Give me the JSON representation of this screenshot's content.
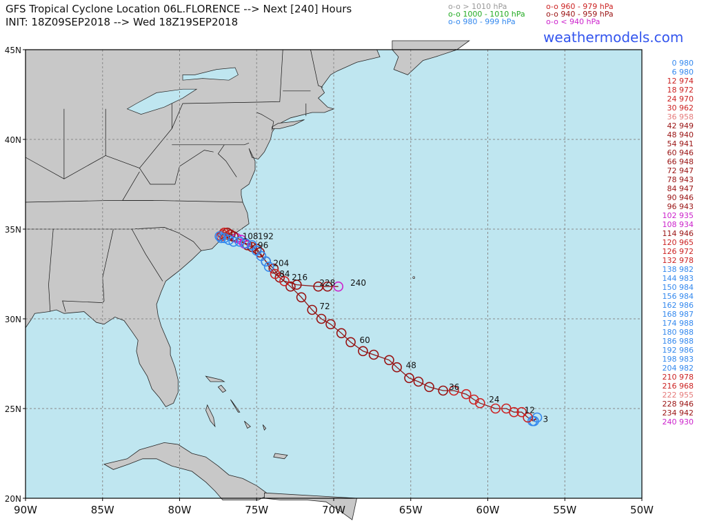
{
  "header": {
    "title_line1": "GFS Tropical Cyclone Location 06L.FLORENCE --> Next [240] Hours",
    "title_line2": "INIT: 18Z09SEP2018 --> Wed 18Z19SEP2018",
    "brand": "weathermodels.com"
  },
  "legend": [
    {
      "label": "o-o > 1010 hPa",
      "color": "#999999"
    },
    {
      "label": "o-o 1000 - 1010 hPa",
      "color": "#22aa22"
    },
    {
      "label": "o-o 980 - 999 hPa",
      "color": "#3388ee"
    },
    {
      "label": "o-o 960 - 979 hPa",
      "color": "#cc2222"
    },
    {
      "label": "o-o 940 - 959 hPa",
      "color": "#991111"
    },
    {
      "label": "o-o < 940 hPa",
      "color": "#cc22cc"
    }
  ],
  "colors": {
    "ocean": "#bfe6f0",
    "land": "#c8c8c8",
    "track": "#8b1a1a",
    "grid": "#888888"
  },
  "axes": {
    "lon_range": [
      -90,
      -50
    ],
    "lat_range": [
      20,
      45
    ],
    "lon_ticks": [
      {
        "v": -90,
        "label": "90W"
      },
      {
        "v": -85,
        "label": "85W"
      },
      {
        "v": -80,
        "label": "80W"
      },
      {
        "v": -75,
        "label": "75W"
      },
      {
        "v": -70,
        "label": "70W"
      },
      {
        "v": -65,
        "label": "65W"
      },
      {
        "v": -60,
        "label": "60W"
      },
      {
        "v": -55,
        "label": "55W"
      },
      {
        "v": -50,
        "label": "50W"
      }
    ],
    "lat_ticks": [
      {
        "v": 20,
        "label": "20N"
      },
      {
        "v": 25,
        "label": "25N"
      },
      {
        "v": 30,
        "label": "30N"
      },
      {
        "v": 35,
        "label": "35N"
      },
      {
        "v": 40,
        "label": "40N"
      },
      {
        "v": 45,
        "label": "45N"
      }
    ]
  },
  "track": [
    {
      "hr": 0,
      "lon": -57.1,
      "lat": 24.3,
      "p": 980
    },
    {
      "hr": 3,
      "lon": -56.8,
      "lat": 24.5,
      "p": 980
    },
    {
      "hr": 6,
      "lon": -57.0,
      "lat": 24.3,
      "p": 980
    },
    {
      "hr": 9,
      "lon": -57.4,
      "lat": 24.5,
      "p": 975
    },
    {
      "hr": 12,
      "lon": -57.8,
      "lat": 24.8,
      "p": 974
    },
    {
      "hr": 15,
      "lon": -58.3,
      "lat": 24.8,
      "p": 973
    },
    {
      "hr": 18,
      "lon": -58.8,
      "lat": 25.0,
      "p": 972
    },
    {
      "hr": 21,
      "lon": -59.5,
      "lat": 25.0,
      "p": 971
    },
    {
      "hr": 24,
      "lon": -60.5,
      "lat": 25.3,
      "p": 970
    },
    {
      "hr": 27,
      "lon": -60.9,
      "lat": 25.5,
      "p": 966
    },
    {
      "hr": 30,
      "lon": -61.4,
      "lat": 25.8,
      "p": 962
    },
    {
      "hr": 33,
      "lon": -62.2,
      "lat": 26.0,
      "p": 960
    },
    {
      "hr": 36,
      "lon": -62.9,
      "lat": 26.0,
      "p": 958
    },
    {
      "hr": 39,
      "lon": -63.8,
      "lat": 26.2,
      "p": 953
    },
    {
      "hr": 42,
      "lon": -64.5,
      "lat": 26.5,
      "p": 949
    },
    {
      "hr": 45,
      "lon": -65.1,
      "lat": 26.7,
      "p": 945
    },
    {
      "hr": 48,
      "lon": -65.9,
      "lat": 27.3,
      "p": 940
    },
    {
      "hr": 51,
      "lon": -66.4,
      "lat": 27.7,
      "p": 940
    },
    {
      "hr": 54,
      "lon": -67.4,
      "lat": 28.0,
      "p": 941
    },
    {
      "hr": 57,
      "lon": -68.1,
      "lat": 28.2,
      "p": 943
    },
    {
      "hr": 60,
      "lon": -68.9,
      "lat": 28.7,
      "p": 946
    },
    {
      "hr": 63,
      "lon": -69.5,
      "lat": 29.2,
      "p": 947
    },
    {
      "hr": 66,
      "lon": -70.2,
      "lat": 29.7,
      "p": 948
    },
    {
      "hr": 69,
      "lon": -70.8,
      "lat": 30.0,
      "p": 948
    },
    {
      "hr": 72,
      "lon": -71.4,
      "lat": 30.5,
      "p": 947
    },
    {
      "hr": 75,
      "lon": -72.1,
      "lat": 31.2,
      "p": 945
    },
    {
      "hr": 78,
      "lon": -72.8,
      "lat": 31.8,
      "p": 943
    },
    {
      "hr": 81,
      "lon": -73.5,
      "lat": 32.3,
      "p": 945
    },
    {
      "hr": 84,
      "lon": -73.9,
      "lat": 32.8,
      "p": 947
    },
    {
      "hr": 87,
      "lon": -74.4,
      "lat": 33.2,
      "p": 948
    },
    {
      "hr": 90,
      "lon": -74.8,
      "lat": 33.7,
      "p": 946
    },
    {
      "hr": 93,
      "lon": -75.0,
      "lat": 33.9,
      "p": 944
    },
    {
      "hr": 96,
      "lon": -75.3,
      "lat": 34.0,
      "p": 943
    },
    {
      "hr": 99,
      "lon": -75.6,
      "lat": 34.1,
      "p": 940
    },
    {
      "hr": 102,
      "lon": -75.8,
      "lat": 34.2,
      "p": 935
    },
    {
      "hr": 105,
      "lon": -76.0,
      "lat": 34.4,
      "p": 934
    },
    {
      "hr": 108,
      "lon": -76.3,
      "lat": 34.5,
      "p": 934
    },
    {
      "hr": 111,
      "lon": -76.5,
      "lat": 34.6,
      "p": 940
    },
    {
      "hr": 114,
      "lon": -76.7,
      "lat": 34.7,
      "p": 946
    },
    {
      "hr": 117,
      "lon": -76.9,
      "lat": 34.8,
      "p": 955
    },
    {
      "hr": 120,
      "lon": -77.1,
      "lat": 34.8,
      "p": 965
    },
    {
      "hr": 126,
      "lon": -77.2,
      "lat": 34.7,
      "p": 972
    },
    {
      "hr": 132,
      "lon": -77.3,
      "lat": 34.6,
      "p": 978
    },
    {
      "hr": 138,
      "lon": -77.4,
      "lat": 34.6,
      "p": 982
    },
    {
      "hr": 144,
      "lon": -77.3,
      "lat": 34.5,
      "p": 983
    },
    {
      "hr": 150,
      "lon": -77.1,
      "lat": 34.5,
      "p": 984
    },
    {
      "hr": 156,
      "lon": -76.8,
      "lat": 34.4,
      "p": 984
    },
    {
      "hr": 162,
      "lon": -76.5,
      "lat": 34.3,
      "p": 986
    },
    {
      "hr": 168,
      "lon": -76.1,
      "lat": 34.3,
      "p": 987
    },
    {
      "hr": 174,
      "lon": -75.7,
      "lat": 34.2,
      "p": 988
    },
    {
      "hr": 180,
      "lon": -75.3,
      "lat": 34.1,
      "p": 988
    },
    {
      "hr": 186,
      "lon": -75.0,
      "lat": 33.8,
      "p": 988
    },
    {
      "hr": 192,
      "lon": -74.7,
      "lat": 33.5,
      "p": 986
    },
    {
      "hr": 198,
      "lon": -74.4,
      "lat": 33.2,
      "p": 983
    },
    {
      "hr": 204,
      "lon": -74.2,
      "lat": 32.9,
      "p": 982
    },
    {
      "hr": 210,
      "lon": -73.8,
      "lat": 32.5,
      "p": 978
    },
    {
      "hr": 216,
      "lon": -73.2,
      "lat": 32.1,
      "p": 968
    },
    {
      "hr": 222,
      "lon": -72.4,
      "lat": 31.9,
      "p": 955
    },
    {
      "hr": 228,
      "lon": -71.0,
      "lat": 31.8,
      "p": 946
    },
    {
      "hr": 234,
      "lon": -70.4,
      "lat": 31.8,
      "p": 942
    },
    {
      "hr": 240,
      "lon": -69.7,
      "lat": 31.8,
      "p": 930
    }
  ],
  "track_labels": [
    {
      "text": "3",
      "lon": -56.6,
      "lat": 24.4
    },
    {
      "text": "12",
      "lon": -57.8,
      "lat": 24.9
    },
    {
      "text": "24",
      "lon": -60.1,
      "lat": 25.5
    },
    {
      "text": "36",
      "lon": -62.7,
      "lat": 26.2
    },
    {
      "text": "48",
      "lon": -65.5,
      "lat": 27.4
    },
    {
      "text": "60",
      "lon": -68.5,
      "lat": 28.8
    },
    {
      "text": "72",
      "lon": -71.1,
      "lat": 30.7
    },
    {
      "text": "84",
      "lon": -73.7,
      "lat": 32.5
    },
    {
      "text": "96",
      "lon": -75.1,
      "lat": 34.1
    },
    {
      "text": "108",
      "lon": -76.1,
      "lat": 34.6
    },
    {
      "text": "192",
      "lon": -75.1,
      "lat": 34.6
    },
    {
      "text": "204",
      "lon": -74.1,
      "lat": 33.1
    },
    {
      "text": "216",
      "lon": -72.9,
      "lat": 32.3
    },
    {
      "text": "228",
      "lon": -71.1,
      "lat": 32.0
    },
    {
      "text": "240",
      "lon": -69.1,
      "lat": 32.0
    }
  ],
  "pressure_table": [
    {
      "text": "0 980",
      "color": "#3388ee"
    },
    {
      "text": "6 980",
      "color": "#3388ee"
    },
    {
      "text": "12 974",
      "color": "#cc2222"
    },
    {
      "text": "18 972",
      "color": "#cc2222"
    },
    {
      "text": "24 970",
      "color": "#cc2222"
    },
    {
      "text": "30 962",
      "color": "#cc2222"
    },
    {
      "text": "36 958",
      "color": "#e57a7a"
    },
    {
      "text": "42 949",
      "color": "#991111"
    },
    {
      "text": "48 940",
      "color": "#991111"
    },
    {
      "text": "54 941",
      "color": "#991111"
    },
    {
      "text": "60 946",
      "color": "#991111"
    },
    {
      "text": "66 948",
      "color": "#991111"
    },
    {
      "text": "72 947",
      "color": "#991111"
    },
    {
      "text": "78 943",
      "color": "#991111"
    },
    {
      "text": "84 947",
      "color": "#991111"
    },
    {
      "text": "90 946",
      "color": "#991111"
    },
    {
      "text": "96 943",
      "color": "#991111"
    },
    {
      "text": "102 935",
      "color": "#cc22cc"
    },
    {
      "text": "108 934",
      "color": "#cc22cc"
    },
    {
      "text": "114 946",
      "color": "#991111"
    },
    {
      "text": "120 965",
      "color": "#cc2222"
    },
    {
      "text": "126 972",
      "color": "#cc2222"
    },
    {
      "text": "132 978",
      "color": "#cc2222"
    },
    {
      "text": "138 982",
      "color": "#3388ee"
    },
    {
      "text": "144 983",
      "color": "#3388ee"
    },
    {
      "text": "150 984",
      "color": "#3388ee"
    },
    {
      "text": "156 984",
      "color": "#3388ee"
    },
    {
      "text": "162 986",
      "color": "#3388ee"
    },
    {
      "text": "168 987",
      "color": "#3388ee"
    },
    {
      "text": "174 988",
      "color": "#3388ee"
    },
    {
      "text": "180 988",
      "color": "#3388ee"
    },
    {
      "text": "186 988",
      "color": "#3388ee"
    },
    {
      "text": "192 986",
      "color": "#3388ee"
    },
    {
      "text": "198 983",
      "color": "#3388ee"
    },
    {
      "text": "204 982",
      "color": "#3388ee"
    },
    {
      "text": "210 978",
      "color": "#cc2222"
    },
    {
      "text": "216 968",
      "color": "#cc2222"
    },
    {
      "text": "222 955",
      "color": "#e57a7a"
    },
    {
      "text": "228 946",
      "color": "#991111"
    },
    {
      "text": "234 942",
      "color": "#991111"
    },
    {
      "text": "240 930",
      "color": "#cc22cc"
    }
  ]
}
